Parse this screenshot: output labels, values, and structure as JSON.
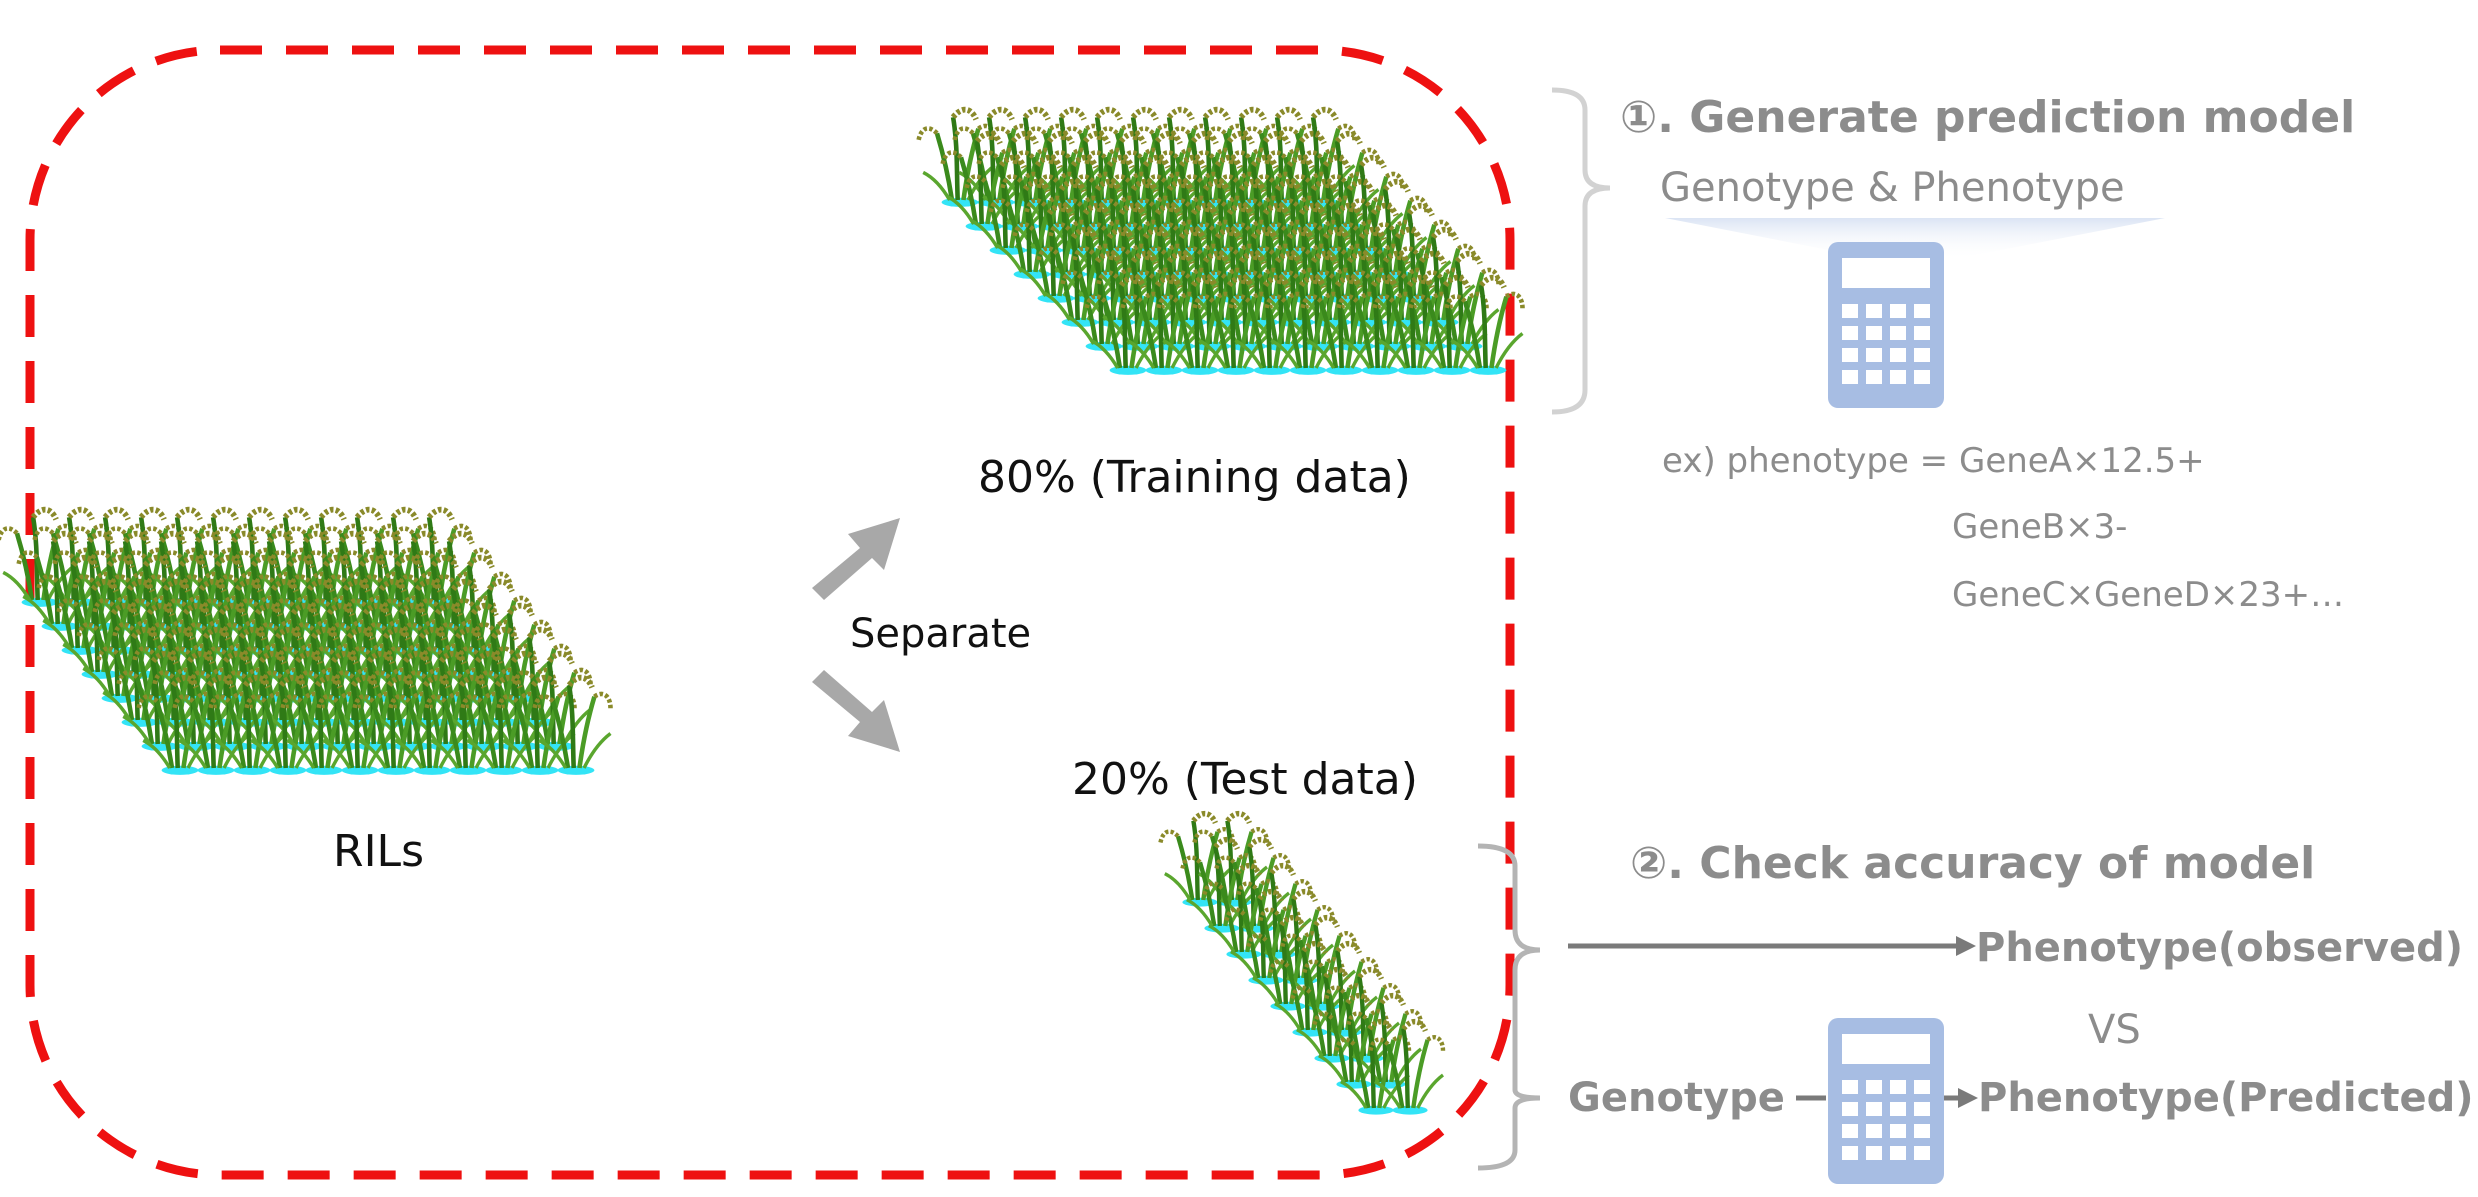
{
  "labels": {
    "rils": "RILs",
    "separate": "Separate",
    "training": "80% (Training data)",
    "test": "20% (Test data)"
  },
  "step1": {
    "title": "①. Generate prediction model",
    "inputs": "Genotype & Phenotype",
    "formula_line1": "ex) phenotype  = GeneA×12.5+",
    "formula_line2": "GeneB×3-",
    "formula_line3": "GeneC×GeneD×23+…"
  },
  "step2": {
    "title": "②. Check accuracy of model",
    "observed": "Phenotype(observed)",
    "vs": "VS",
    "genotype": "Genotype",
    "predicted": "Phenotype(Predicted)"
  },
  "colors": {
    "dashed_border": "#ee1111",
    "arrow_gray": "#a8a8a8",
    "calculator_blue": "#a7bde3",
    "plant_green": "#3d8a1f",
    "water_cyan": "#33e4f6",
    "text_gray": "#8c8c8c"
  }
}
